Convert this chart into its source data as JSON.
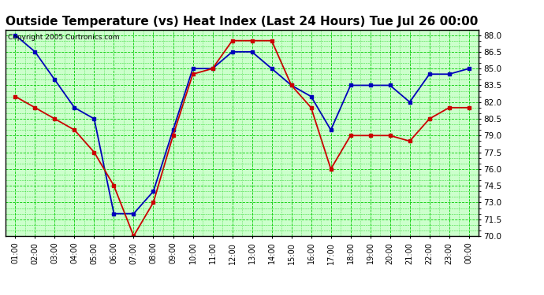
{
  "title": "Outside Temperature (vs) Heat Index (Last 24 Hours) Tue Jul 26 00:00",
  "copyright": "Copyright 2005 Curtronics.com",
  "x_labels": [
    "01:00",
    "02:00",
    "03:00",
    "04:00",
    "05:00",
    "06:00",
    "07:00",
    "08:00",
    "09:00",
    "10:00",
    "11:00",
    "12:00",
    "13:00",
    "14:00",
    "15:00",
    "16:00",
    "17:00",
    "18:00",
    "19:00",
    "20:00",
    "21:00",
    "22:00",
    "23:00",
    "00:00"
  ],
  "blue_data": [
    88.0,
    86.5,
    84.0,
    81.5,
    80.5,
    72.0,
    72.0,
    74.0,
    79.5,
    85.0,
    85.0,
    86.5,
    86.5,
    85.0,
    83.5,
    82.5,
    79.5,
    83.5,
    83.5,
    83.5,
    82.0,
    84.5,
    84.5,
    85.0
  ],
  "red_data": [
    82.5,
    81.5,
    80.5,
    79.5,
    77.5,
    74.5,
    70.0,
    73.0,
    79.0,
    84.5,
    85.0,
    87.5,
    87.5,
    87.5,
    83.5,
    81.5,
    76.0,
    79.0,
    79.0,
    79.0,
    78.5,
    80.5,
    81.5,
    81.5
  ],
  "blue_color": "#0000bb",
  "red_color": "#cc0000",
  "outer_bg": "#ffffff",
  "plot_bg": "#ccffcc",
  "title_fontsize": 11,
  "ylim_min": 70.0,
  "ylim_max": 88.5,
  "ytick_step": 1.5,
  "grid_color": "#00cc00",
  "marker": "s",
  "marker_size": 3,
  "line_width": 1.3
}
